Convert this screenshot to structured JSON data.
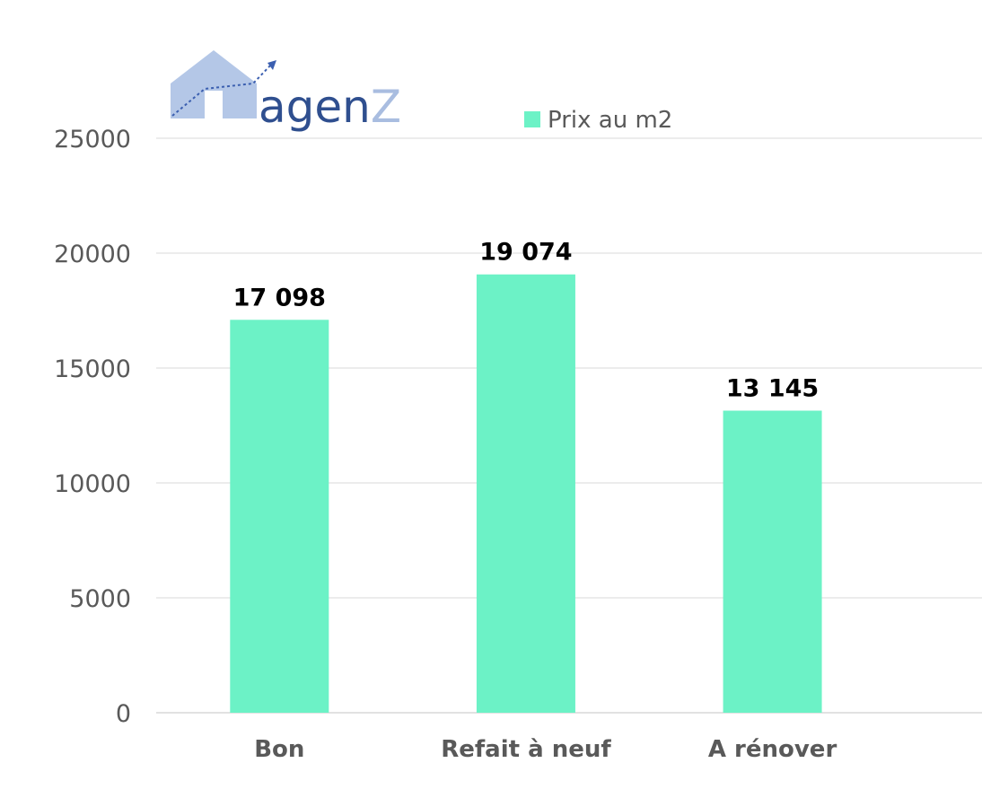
{
  "logo": {
    "text": "agen",
    "accent": "Z",
    "house_color": "#b4c7e7",
    "text_color": "#2f4f8f"
  },
  "chart_data": {
    "type": "bar",
    "categories": [
      "Bon",
      "Refait à neuf",
      "A rénover"
    ],
    "series": [
      {
        "name": "Prix au m2",
        "values": [
          17098,
          19074,
          13145
        ],
        "labels": [
          "17 098",
          "19 074",
          "13 145"
        ],
        "color": "#6cf2c6"
      }
    ],
    "ylim": [
      0,
      25000
    ],
    "yticks": [
      "0",
      "5000",
      "10000",
      "15000",
      "20000",
      "25000"
    ],
    "grid": true,
    "legend_position": "top-right"
  }
}
